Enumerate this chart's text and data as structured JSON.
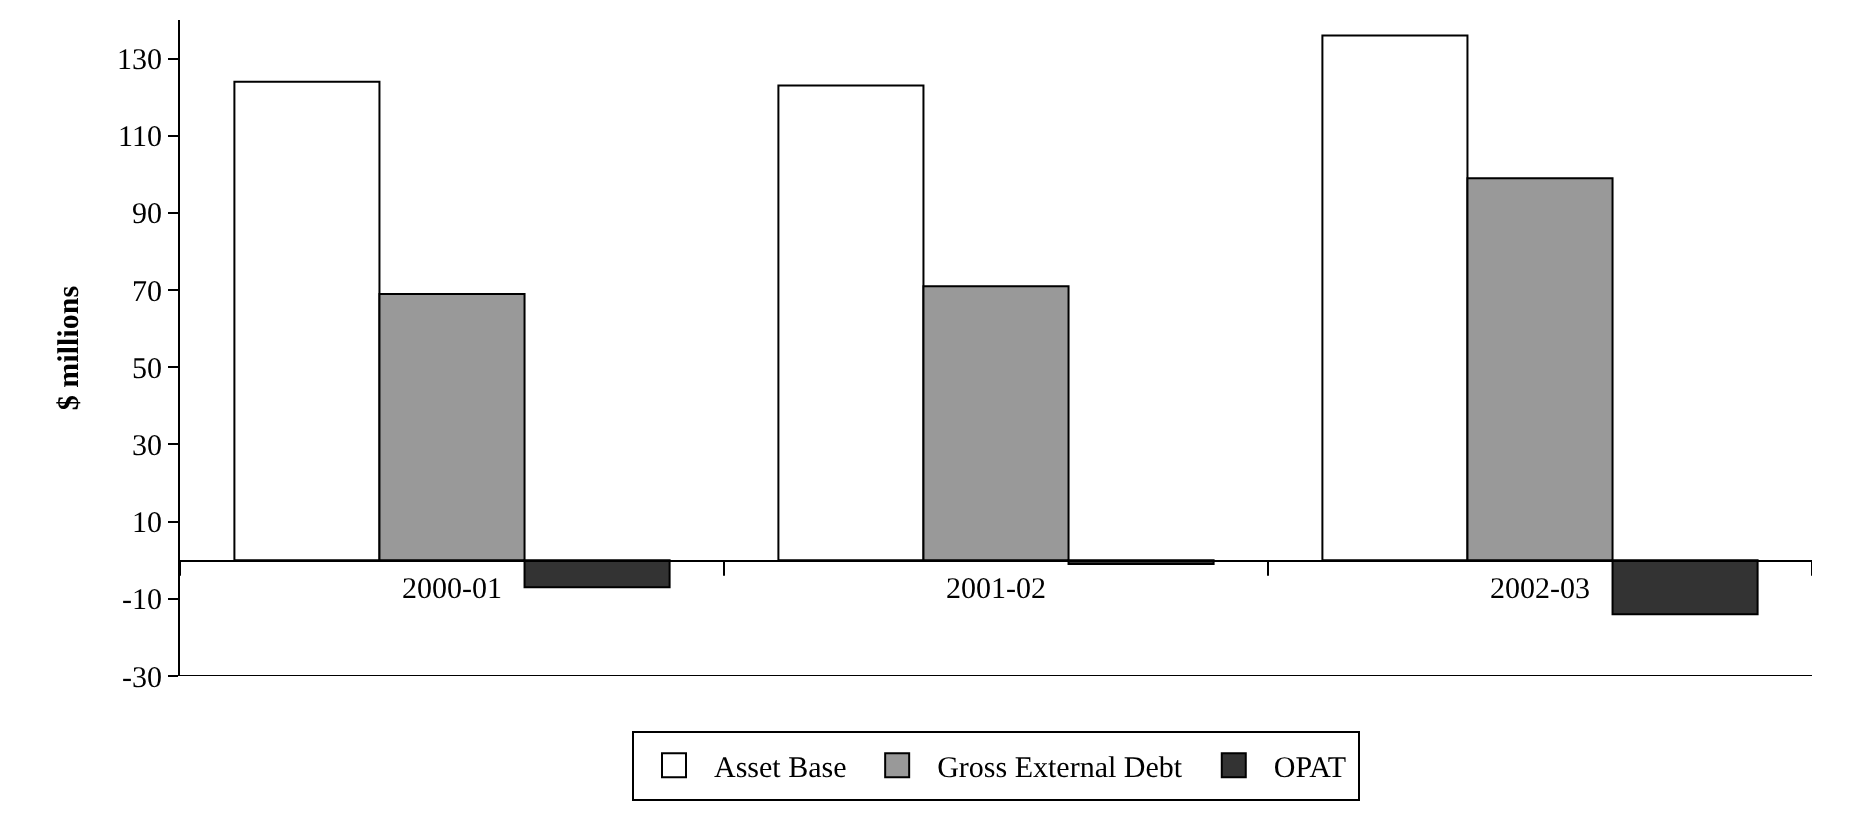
{
  "chart_data": {
    "type": "bar",
    "ylabel": "$ millions",
    "categories": [
      "2000-01",
      "2001-02",
      "2002-03"
    ],
    "series": [
      {
        "name": "Asset Base",
        "color": "#ffffff",
        "values": [
          124,
          123,
          136
        ]
      },
      {
        "name": "Gross External Debt",
        "color": "#999999",
        "values": [
          69,
          71,
          99
        ]
      },
      {
        "name": "OPAT",
        "color": "#333333",
        "values": [
          -7,
          -1,
          -14
        ]
      }
    ],
    "ylim": [
      -30,
      140
    ],
    "yticks": [
      -30,
      -10,
      10,
      30,
      50,
      70,
      90,
      110,
      130
    ],
    "legend": "bottom"
  }
}
